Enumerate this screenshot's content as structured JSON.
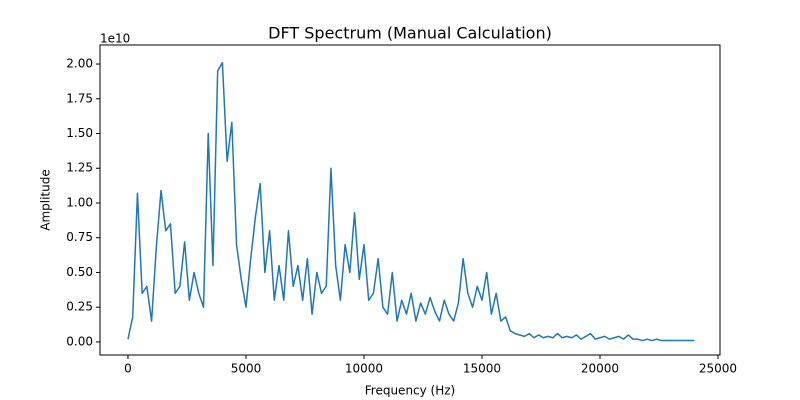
{
  "chart_data": {
    "type": "line",
    "title": "DFT Spectrum (Manual Calculation)",
    "x_label": "Frequency (Hz)",
    "y_label": "Amplitude",
    "y_offset_label": "1e10",
    "grid": false,
    "x": [
      0,
      200,
      400,
      600,
      800,
      1000,
      1200,
      1400,
      1600,
      1800,
      2000,
      2200,
      2400,
      2600,
      2800,
      3000,
      3200,
      3400,
      3600,
      3800,
      4000,
      4200,
      4400,
      4600,
      4800,
      5000,
      5200,
      5400,
      5600,
      5800,
      6000,
      6200,
      6400,
      6600,
      6800,
      7000,
      7200,
      7400,
      7600,
      7800,
      8000,
      8200,
      8400,
      8600,
      8800,
      9000,
      9200,
      9400,
      9600,
      9800,
      10000,
      10200,
      10400,
      10600,
      10800,
      11000,
      11200,
      11400,
      11600,
      11800,
      12000,
      12200,
      12400,
      12600,
      12800,
      13000,
      13200,
      13400,
      13600,
      13800,
      14000,
      14200,
      14400,
      14600,
      14800,
      15000,
      15200,
      15400,
      15600,
      15800,
      16000,
      16200,
      16400,
      16600,
      16800,
      17000,
      17200,
      17400,
      17600,
      17800,
      18000,
      18200,
      18400,
      18600,
      18800,
      19000,
      19200,
      19400,
      19600,
      19800,
      20000,
      20200,
      20400,
      20600,
      20800,
      21000,
      21200,
      21400,
      21600,
      21800,
      22000,
      22200,
      22400,
      22600,
      22800,
      23000,
      23200,
      23400,
      23600,
      23800,
      24000
    ],
    "series": [
      {
        "name": "Amplitude",
        "color": "#1f77b4",
        "values": [
          0.02,
          0.18,
          1.07,
          0.35,
          0.4,
          0.15,
          0.68,
          1.09,
          0.8,
          0.85,
          0.35,
          0.4,
          0.72,
          0.3,
          0.5,
          0.35,
          0.25,
          1.5,
          0.55,
          1.95,
          2.01,
          1.3,
          1.58,
          0.7,
          0.45,
          0.25,
          0.6,
          0.9,
          1.14,
          0.5,
          0.8,
          0.3,
          0.55,
          0.3,
          0.8,
          0.4,
          0.55,
          0.3,
          0.6,
          0.2,
          0.5,
          0.35,
          0.4,
          1.25,
          0.55,
          0.3,
          0.7,
          0.5,
          0.93,
          0.45,
          0.7,
          0.3,
          0.35,
          0.6,
          0.25,
          0.2,
          0.5,
          0.15,
          0.3,
          0.2,
          0.35,
          0.15,
          0.28,
          0.2,
          0.32,
          0.22,
          0.15,
          0.3,
          0.2,
          0.15,
          0.28,
          0.6,
          0.35,
          0.25,
          0.4,
          0.3,
          0.5,
          0.2,
          0.35,
          0.15,
          0.18,
          0.08,
          0.06,
          0.05,
          0.04,
          0.06,
          0.03,
          0.05,
          0.03,
          0.04,
          0.03,
          0.06,
          0.03,
          0.04,
          0.03,
          0.05,
          0.02,
          0.04,
          0.06,
          0.02,
          0.03,
          0.04,
          0.02,
          0.03,
          0.04,
          0.02,
          0.05,
          0.02,
          0.02,
          0.01,
          0.02,
          0.01,
          0.02,
          0.01,
          0.01,
          0.01,
          0.01,
          0.01,
          0.01,
          0.01,
          0.01
        ]
      }
    ],
    "xlim": [
      -1186,
      25085
    ],
    "xticks": [
      0,
      5000,
      10000,
      15000,
      20000,
      25000
    ],
    "ylim": [
      -0.094,
      2.137
    ],
    "yticks": [
      {
        "value": 0,
        "label": "0.00"
      },
      {
        "value": 0.25,
        "label": "0.25"
      },
      {
        "value": 0.5,
        "label": "0.50"
      },
      {
        "value": 0.75,
        "label": "0.75"
      },
      {
        "value": 1,
        "label": "1.00"
      },
      {
        "value": 1.25,
        "label": "1.25"
      },
      {
        "value": 1.5,
        "label": "1.50"
      },
      {
        "value": 1.75,
        "label": "1.75"
      },
      {
        "value": 2,
        "label": "2.00"
      }
    ]
  }
}
